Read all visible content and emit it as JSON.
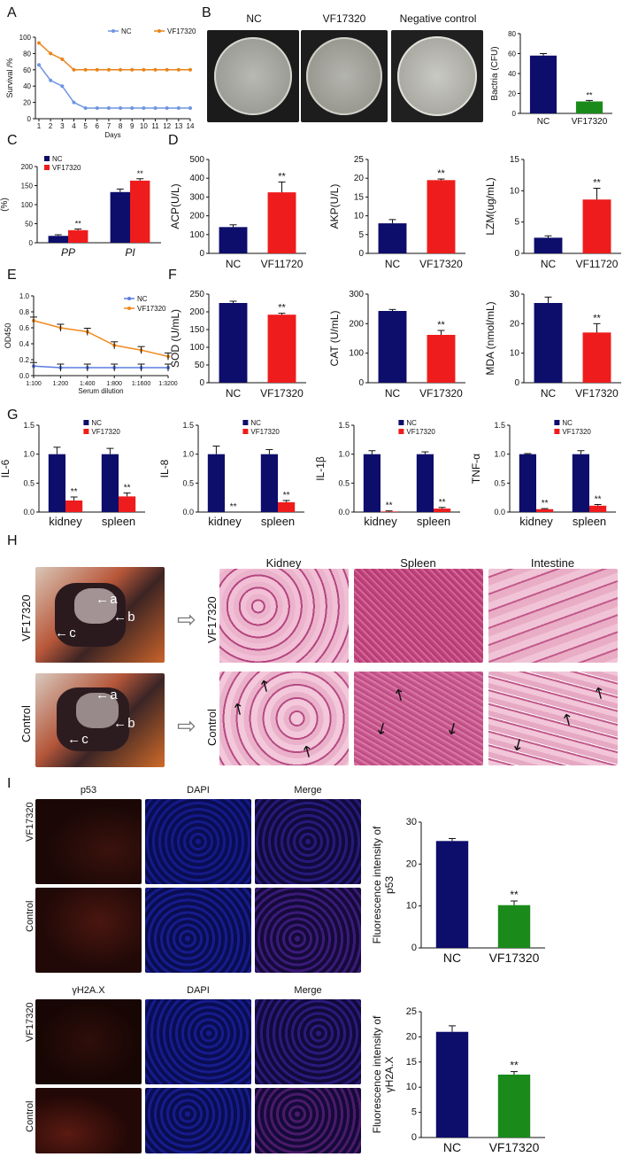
{
  "panel_letters": [
    "A",
    "B",
    "C",
    "D",
    "E",
    "F",
    "G",
    "H",
    "I"
  ],
  "panel_B": {
    "plate_labels": [
      "NC",
      "VF17320",
      "Negative control"
    ]
  },
  "panel_H": {
    "column_labels": [
      "Kidney",
      "Spleen",
      "Intestine"
    ],
    "row_labels": [
      "VF17320",
      "Control"
    ],
    "arrow_labels": [
      "a",
      "b",
      "c"
    ]
  },
  "panel_I": {
    "group1_columns": [
      "p53",
      "DAPI",
      "Merge"
    ],
    "group2_columns": [
      "γH2A.X",
      "DAPI",
      "Merge"
    ],
    "row_labels": [
      "VF17320",
      "Control"
    ]
  },
  "colors": {
    "nc_navy": "#0d0d6b",
    "vf_red": "#ee1c1c",
    "vf_green": "#1a8a1a",
    "nc_line": "#5b7be0",
    "vf_line": "#f08a1e",
    "survival_nc": "#6f95e0",
    "survival_vf": "#e8841a"
  },
  "chart_data": [
    {
      "id": "A",
      "type": "line",
      "xlabel": "Days",
      "ylabel": "Survival /%",
      "x": [
        1,
        2,
        3,
        4,
        5,
        6,
        7,
        8,
        9,
        10,
        11,
        12,
        13,
        14
      ],
      "ylim": [
        0,
        100
      ],
      "yticks": [
        0,
        20,
        40,
        60,
        80,
        100
      ],
      "series": [
        {
          "name": "NC",
          "values": [
            66,
            47,
            40,
            20,
            13,
            13,
            13,
            13,
            13,
            13,
            13,
            13,
            13,
            13
          ]
        },
        {
          "name": "VF17320",
          "values": [
            93,
            80,
            73,
            60,
            60,
            60,
            60,
            60,
            60,
            60,
            60,
            60,
            60,
            60
          ]
        }
      ]
    },
    {
      "id": "B",
      "type": "bar",
      "categories": [
        "NC",
        "VF17320"
      ],
      "values": [
        58,
        12
      ],
      "errors": [
        2,
        1
      ],
      "ylabel": "Bactria (CFU)",
      "ylim": [
        0,
        80
      ],
      "yticks": [
        0,
        20,
        40,
        60,
        80
      ],
      "annotation": "**"
    },
    {
      "id": "C",
      "type": "bar",
      "categories": [
        "PP",
        "PI"
      ],
      "ylabel": "(%)",
      "ylim": [
        0,
        200
      ],
      "yticks": [
        0,
        50,
        100,
        150,
        200
      ],
      "series": [
        {
          "name": "NC",
          "values": [
            18,
            133
          ],
          "errors": [
            3,
            8
          ]
        },
        {
          "name": "VF17320",
          "values": [
            33,
            163
          ],
          "errors": [
            3,
            5
          ]
        }
      ],
      "annotation": "**"
    },
    {
      "id": "D1",
      "type": "bar",
      "categories": [
        "NC",
        "VF11720"
      ],
      "values": [
        140,
        325
      ],
      "errors": [
        12,
        55
      ],
      "ylabel": "ACP(U/L)",
      "ylim": [
        0,
        500
      ],
      "yticks": [
        0,
        100,
        200,
        300,
        400,
        500
      ],
      "annotation": "**"
    },
    {
      "id": "D2",
      "type": "bar",
      "categories": [
        "NC",
        "VF17320"
      ],
      "values": [
        8,
        19.5
      ],
      "errors": [
        1,
        0.3
      ],
      "ylabel": "AKP(U/L)",
      "ylim": [
        0,
        25
      ],
      "yticks": [
        0,
        5,
        10,
        15,
        20,
        25
      ],
      "annotation": "**"
    },
    {
      "id": "D3",
      "type": "bar",
      "categories": [
        "NC",
        "VF11720"
      ],
      "values": [
        2.5,
        8.6
      ],
      "errors": [
        0.3,
        1.8
      ],
      "ylabel": "LZM(ug/mL)",
      "ylim": [
        0,
        15
      ],
      "yticks": [
        0,
        5,
        10,
        15
      ],
      "annotation": "**"
    },
    {
      "id": "E",
      "type": "line",
      "xlabel": "Serum dilution",
      "ylabel": "OD450",
      "x": [
        "1:100",
        "1:200",
        "1:400",
        "1:800",
        "1:1600",
        "1:3200"
      ],
      "ylim": [
        0,
        1.0
      ],
      "yticks": [
        0,
        0.2,
        0.4,
        0.6,
        0.8,
        1.0
      ],
      "series": [
        {
          "name": "NC",
          "values": [
            0.12,
            0.1,
            0.1,
            0.1,
            0.1,
            0.1
          ]
        },
        {
          "name": "VF17320",
          "values": [
            0.69,
            0.6,
            0.55,
            0.38,
            0.32,
            0.24
          ]
        }
      ]
    },
    {
      "id": "F1",
      "type": "bar",
      "categories": [
        "NC",
        "VF17320"
      ],
      "values": [
        225,
        192
      ],
      "errors": [
        5,
        4
      ],
      "ylabel": "SOD (U/mL)",
      "ylim": [
        0,
        250
      ],
      "yticks": [
        0,
        50,
        100,
        150,
        200,
        250
      ],
      "annotation": "**"
    },
    {
      "id": "F2",
      "type": "bar",
      "categories": [
        "NC",
        "VF17320"
      ],
      "values": [
        243,
        162
      ],
      "errors": [
        5,
        15
      ],
      "ylabel": "CAT (U/mL)",
      "ylim": [
        0,
        300
      ],
      "yticks": [
        0,
        100,
        200,
        300
      ],
      "annotation": "**"
    },
    {
      "id": "F3",
      "type": "bar",
      "categories": [
        "NC",
        "VF17320"
      ],
      "values": [
        27,
        17
      ],
      "errors": [
        2,
        3
      ],
      "ylabel": "MDA (nmol/mL)",
      "ylim": [
        0,
        30
      ],
      "yticks": [
        0,
        10,
        20,
        30
      ],
      "annotation": "**"
    },
    {
      "id": "G1",
      "type": "bar",
      "categories": [
        "kidney",
        "spleen"
      ],
      "ylabel": "IL-6",
      "ylim": [
        0,
        1.5
      ],
      "yticks": [
        0.0,
        0.5,
        1.0,
        1.5
      ],
      "series": [
        {
          "name": "NC",
          "values": [
            1.0,
            1.0
          ],
          "errors": [
            0.12,
            0.1
          ]
        },
        {
          "name": "VF17320",
          "values": [
            0.2,
            0.27
          ],
          "errors": [
            0.06,
            0.06
          ]
        }
      ],
      "annotation": "**"
    },
    {
      "id": "G2",
      "type": "bar",
      "categories": [
        "kidney",
        "spleen"
      ],
      "ylabel": "IL-8",
      "ylim": [
        0,
        1.5
      ],
      "yticks": [
        0.0,
        0.5,
        1.0,
        1.5
      ],
      "series": [
        {
          "name": "NC",
          "values": [
            1.0,
            1.0
          ],
          "errors": [
            0.14,
            0.08
          ]
        },
        {
          "name": "VF17320",
          "values": [
            0.0,
            0.17
          ],
          "errors": [
            0,
            0.03
          ]
        }
      ],
      "annotation": "**"
    },
    {
      "id": "G3",
      "type": "bar",
      "categories": [
        "kidney",
        "spleen"
      ],
      "ylabel": "IL-1β",
      "ylim": [
        0,
        1.5
      ],
      "yticks": [
        0.0,
        0.5,
        1.0,
        1.5
      ],
      "series": [
        {
          "name": "NC",
          "values": [
            1.0,
            1.0
          ],
          "errors": [
            0.06,
            0.04
          ]
        },
        {
          "name": "VF17320",
          "values": [
            0.01,
            0.06
          ],
          "errors": [
            0.01,
            0.02
          ]
        }
      ],
      "annotation": "**"
    },
    {
      "id": "G4",
      "type": "bar",
      "categories": [
        "kidney",
        "spleen"
      ],
      "ylabel": "TNF-α",
      "ylim": [
        0,
        1.5
      ],
      "yticks": [
        0.0,
        0.5,
        1.0,
        1.5
      ],
      "series": [
        {
          "name": "NC",
          "values": [
            1.0,
            1.0
          ],
          "errors": [
            0.01,
            0.06
          ]
        },
        {
          "name": "VF17320",
          "values": [
            0.05,
            0.11
          ],
          "errors": [
            0.01,
            0.02
          ]
        }
      ],
      "annotation": "**"
    },
    {
      "id": "I1",
      "type": "bar",
      "categories": [
        "NC",
        "VF17320"
      ],
      "values": [
        25.5,
        10.2
      ],
      "errors": [
        0.6,
        1.0
      ],
      "ylabel": "Fluorescence intensity of p53",
      "ylim": [
        0,
        30
      ],
      "yticks": [
        0,
        10,
        20,
        30
      ],
      "annotation": "**"
    },
    {
      "id": "I2",
      "type": "bar",
      "categories": [
        "NC",
        "VF17320"
      ],
      "values": [
        21,
        12.5
      ],
      "errors": [
        1.2,
        0.6
      ],
      "ylabel": "Fluorescence intensity of γH2A.X",
      "ylim": [
        0,
        25
      ],
      "yticks": [
        0,
        5,
        10,
        15,
        20,
        25
      ],
      "annotation": "**"
    }
  ]
}
